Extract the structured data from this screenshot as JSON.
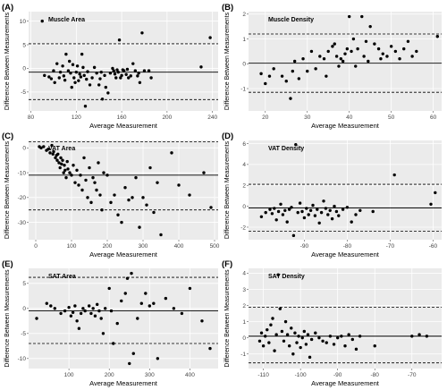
{
  "figure": {
    "shared_ylabel": "Difference Between Measurements",
    "shared_xlabel": "Average Measurement"
  },
  "chart_data": [
    {
      "panel": "(A)",
      "title": "Muscle Area",
      "type": "scatter",
      "xlabel": "Average Measurement",
      "ylabel": "Difference Between Measurements",
      "xlim": [
        78,
        245
      ],
      "ylim": [
        -9,
        12
      ],
      "xticks": [
        80,
        120,
        160,
        200,
        240
      ],
      "yticks": [
        -5,
        0,
        5,
        10
      ],
      "grid": true,
      "mean_diff": -0.8,
      "loa_upper": 5.2,
      "loa_lower": -6.6,
      "x": [
        90,
        92,
        96,
        98,
        100,
        101,
        103,
        105,
        106,
        108,
        109,
        110,
        111,
        113,
        114,
        115,
        116,
        117,
        118,
        119,
        120,
        121,
        122,
        123,
        124,
        125,
        126,
        127,
        128,
        129,
        130,
        132,
        134,
        136,
        138,
        140,
        141,
        142,
        143,
        145,
        146,
        148,
        150,
        152,
        153,
        154,
        155,
        156,
        157,
        158,
        159,
        160,
        161,
        162,
        164,
        165,
        166,
        168,
        170,
        172,
        174,
        175,
        176,
        178,
        180,
        184,
        186,
        230,
        238
      ],
      "y": [
        10,
        -1.5,
        -1.8,
        -2.2,
        -0.5,
        -3,
        1,
        -2,
        -0.8,
        0.5,
        -1.6,
        -2.5,
        3,
        -0.5,
        1.5,
        -1,
        -4,
        0.8,
        -2,
        -3,
        -0.8,
        0.5,
        -2.6,
        -1.2,
        -1.8,
        3,
        0.2,
        -1.5,
        -8,
        -2.3,
        -0.7,
        -3.5,
        -2,
        0.2,
        -1,
        -3.5,
        -2.2,
        -0.8,
        -6.5,
        -1.5,
        -4,
        -5.2,
        -1,
        0,
        -0.5,
        -1.2,
        -2,
        -0.3,
        -0.8,
        6,
        -2,
        -1.5,
        -0.3,
        -0.5,
        -1.3,
        -0.2,
        -2,
        -1.6,
        1,
        -0.5,
        -1.6,
        -1,
        -3,
        7.5,
        -0.5,
        -0.5,
        -2,
        0.3,
        6.5
      ]
    },
    {
      "panel": "(B)",
      "title": "Muscle Density",
      "type": "scatter",
      "xlabel": "Average Measurement",
      "ylabel": "Difference Between Measurements",
      "xlim": [
        16,
        62
      ],
      "ylim": [
        -1.9,
        2.1
      ],
      "xticks": [
        20,
        30,
        40,
        50,
        60
      ],
      "yticks": [
        -1,
        0,
        1,
        2
      ],
      "grid": true,
      "mean_diff": 0.02,
      "loa_upper": 1.2,
      "loa_lower": -1.15,
      "x": [
        19,
        20,
        21,
        22,
        24,
        25,
        26,
        26.5,
        27,
        28,
        29,
        30,
        31,
        32,
        33,
        34,
        34.5,
        35,
        36,
        36.5,
        37,
        37.5,
        38,
        38.5,
        39,
        39.5,
        40,
        40.5,
        41,
        41.5,
        42,
        43,
        43.5,
        44,
        44.5,
        45,
        46,
        47,
        47.5,
        48,
        49,
        50,
        51,
        52,
        53,
        54,
        55,
        56,
        61
      ],
      "y": [
        -0.4,
        -0.8,
        -0.5,
        -0.2,
        -0.5,
        -0.7,
        -1.4,
        -0.3,
        0.1,
        -0.6,
        0.2,
        -0.3,
        0.5,
        -0.2,
        0.3,
        0.2,
        -0.5,
        0.5,
        0.7,
        0.8,
        0.3,
        -0.1,
        0.2,
        0.1,
        0.4,
        0.6,
        1.9,
        0.5,
        1.0,
        -0.1,
        0.6,
        1.9,
        0.3,
        0.9,
        0.1,
        1.5,
        0.8,
        0.6,
        0.2,
        0.4,
        0.3,
        0.7,
        0.5,
        0.2,
        0.6,
        0.9,
        0.3,
        0.5,
        1.1
      ]
    },
    {
      "panel": "(C)",
      "title": "VAT Area",
      "type": "scatter",
      "xlabel": "Average Measurement",
      "ylabel": "Difference Between Measurements",
      "xlim": [
        -20,
        510
      ],
      "ylim": [
        -37,
        3
      ],
      "xticks": [
        0,
        100,
        200,
        300,
        400,
        500
      ],
      "yticks": [
        0,
        -10,
        -20,
        -30
      ],
      "grid": true,
      "mean_diff": -11,
      "loa_upper": 2.5,
      "loa_lower": -25,
      "x": [
        10,
        15,
        22,
        30,
        35,
        40,
        45,
        48,
        50,
        55,
        58,
        60,
        62,
        65,
        68,
        70,
        72,
        75,
        78,
        80,
        82,
        85,
        88,
        90,
        95,
        100,
        105,
        110,
        115,
        120,
        125,
        130,
        135,
        140,
        145,
        150,
        155,
        160,
        165,
        170,
        175,
        180,
        185,
        190,
        200,
        210,
        220,
        230,
        240,
        250,
        260,
        270,
        280,
        290,
        300,
        310,
        320,
        330,
        340,
        350,
        380,
        400,
        430,
        470,
        490
      ],
      "y": [
        0.5,
        0,
        0.5,
        -1,
        -0.5,
        -2,
        1,
        -2.5,
        -1.5,
        -4,
        -3,
        -5,
        -2.5,
        -6,
        -8,
        -4,
        -6.5,
        -5,
        -10,
        -7,
        -9,
        -12,
        -5.5,
        -8.5,
        -10,
        -11,
        -7,
        -14,
        -9,
        -15,
        -11,
        -17,
        -4,
        -13,
        -20,
        -8,
        -22,
        -12,
        -14,
        -17,
        -6,
        -19,
        -25,
        -10,
        -11,
        -22,
        -19,
        -27,
        -30,
        -16,
        -21,
        -20,
        -12,
        -32,
        -20,
        -23,
        -8,
        -26,
        -14,
        -35,
        -2,
        -15,
        -19,
        -10,
        -24
      ]
    },
    {
      "panel": "(D)",
      "title": "VAT Density",
      "type": "scatter",
      "xlabel": "Average Measurement",
      "ylabel": "Difference Between Measurements",
      "xlim": [
        -103,
        -58
      ],
      "ylim": [
        -3.2,
        6.3
      ],
      "xticks": [
        -90,
        -80,
        -70,
        -60
      ],
      "yticks": [
        -2,
        0,
        2,
        4,
        6
      ],
      "grid": true,
      "mean_diff": -0.15,
      "loa_upper": 2.1,
      "loa_lower": -2.4,
      "x": [
        -100,
        -99,
        -98,
        -97.5,
        -97,
        -96.5,
        -96,
        -95.5,
        -95,
        -94.5,
        -94,
        -93.5,
        -93,
        -92.5,
        -92,
        -91.5,
        -91,
        -90.5,
        -90,
        -89.5,
        -89,
        -88.5,
        -88,
        -87.5,
        -87,
        -86.5,
        -86,
        -85.5,
        -85,
        -84.5,
        -84,
        -83.5,
        -83,
        -82.5,
        -82,
        -81,
        -80,
        -79,
        -78,
        -77,
        -74,
        -69,
        -60.5,
        -59.5
      ],
      "y": [
        -1,
        -0.6,
        -0.3,
        -0.7,
        -0.2,
        -1.3,
        -0.5,
        0.2,
        -0.8,
        -0.4,
        -1.5,
        -0.3,
        -0.1,
        -2.8,
        5.9,
        -0.6,
        0.3,
        -0.5,
        -1.1,
        -0.2,
        -0.8,
        -0.4,
        0.1,
        -0.9,
        -0.3,
        -1.6,
        -0.6,
        0.5,
        -0.2,
        -0.8,
        -0.4,
        -1.2,
        0,
        -0.5,
        -0.9,
        -0.3,
        -0.1,
        -1.5,
        -0.8,
        -0.4,
        -0.5,
        3.0,
        0.2,
        1.3
      ]
    },
    {
      "panel": "(E)",
      "title": "SAT Area",
      "type": "scatter",
      "xlabel": "Average Measurement",
      "ylabel": "Difference Between Measurements",
      "xlim": [
        0,
        470
      ],
      "ylim": [
        -12,
        8
      ],
      "xticks": [
        100,
        200,
        300,
        400
      ],
      "yticks": [
        5,
        0,
        -5,
        -10
      ],
      "grid": true,
      "mean_diff": -0.5,
      "loa_upper": 6.2,
      "loa_lower": -7.0,
      "x": [
        20,
        45,
        55,
        65,
        80,
        90,
        100,
        105,
        110,
        115,
        120,
        125,
        130,
        135,
        140,
        150,
        155,
        160,
        165,
        170,
        175,
        180,
        185,
        190,
        200,
        205,
        210,
        220,
        230,
        240,
        245,
        250,
        255,
        260,
        270,
        280,
        290,
        300,
        310,
        320,
        340,
        360,
        380,
        400,
        430,
        450
      ],
      "y": [
        -2,
        1,
        0.5,
        0,
        -1,
        -0.5,
        0.2,
        -1.5,
        -0.8,
        0.5,
        -2.5,
        -4,
        -1,
        0,
        -0.5,
        0.5,
        -1,
        0,
        -1.5,
        0.8,
        -0.5,
        -2,
        -5,
        0,
        4,
        -0.5,
        -7,
        -3,
        1.5,
        3,
        6,
        -11,
        7,
        -9,
        -2,
        1,
        3,
        0.5,
        1,
        -10,
        2,
        0,
        -1,
        4,
        -2.5,
        -8
      ]
    },
    {
      "panel": "(F)",
      "title": "SAT Density",
      "type": "scatter",
      "xlabel": "Average Measurement",
      "ylabel": "Difference Between Measurements",
      "xlim": [
        -114,
        -62
      ],
      "ylim": [
        -1.9,
        4.3
      ],
      "xticks": [
        -110,
        -100,
        -90,
        -80,
        -70
      ],
      "yticks": [
        -1,
        0,
        1,
        2,
        3,
        4
      ],
      "grid": true,
      "mean_diff": 0.1,
      "loa_upper": 1.9,
      "loa_lower": -1.55,
      "x": [
        -111,
        -110.5,
        -110,
        -109.5,
        -109,
        -108.5,
        -108,
        -107.5,
        -107,
        -106.5,
        -106,
        -105.5,
        -105,
        -104.5,
        -104,
        -103.5,
        -103,
        -102.5,
        -102,
        -101.5,
        -101,
        -100.5,
        -100,
        -99.5,
        -99,
        -98.5,
        -98,
        -97.5,
        -97,
        -96,
        -95,
        -94,
        -93,
        -92,
        -91,
        -90,
        -89,
        -88,
        -87,
        -86,
        -85,
        -84,
        -80,
        -70,
        -68,
        -66
      ],
      "y": [
        -0.2,
        0.3,
        -0.5,
        0.1,
        0.5,
        -0.3,
        0.8,
        1.2,
        -0.8,
        0.2,
        3.9,
        1.8,
        0.4,
        -0.2,
        1.0,
        0.2,
        -0.5,
        0.6,
        -1.0,
        0.3,
        -0.3,
        0.1,
        -0.6,
        0.0,
        0.4,
        -0.4,
        0.2,
        -1.2,
        -0.1,
        0.3,
        0.0,
        -0.2,
        -0.3,
        0.1,
        -0.4,
        0.0,
        0.1,
        -0.5,
        0.2,
        -0.1,
        -0.7,
        0.1,
        -0.5,
        0.1,
        0.2,
        0.1
      ]
    }
  ]
}
